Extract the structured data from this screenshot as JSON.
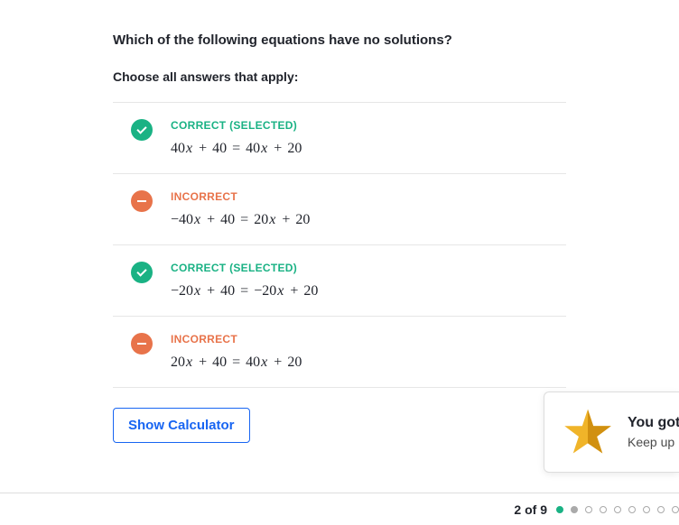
{
  "question": "Which of the following equations have no solutions?",
  "instruction": "Choose all answers that apply:",
  "answers": [
    {
      "status": "correct",
      "label": "CORRECT (SELECTED)",
      "equation": {
        "text": "40<span class='var'>x</span><span class='op'>+</span>40<span class='eq'>=</span>40<span class='var'>x</span><span class='op'>+</span>20"
      }
    },
    {
      "status": "incorrect",
      "label": "INCORRECT",
      "equation": {
        "text": "−40<span class='var'>x</span><span class='op'>+</span>40<span class='eq'>=</span>20<span class='var'>x</span><span class='op'>+</span>20"
      }
    },
    {
      "status": "correct",
      "label": "CORRECT (SELECTED)",
      "equation": {
        "text": "−20<span class='var'>x</span><span class='op'>+</span>40<span class='eq'>=</span>−20<span class='var'>x</span><span class='op'>+</span>20"
      }
    },
    {
      "status": "incorrect",
      "label": "INCORRECT",
      "equation": {
        "text": "20<span class='var'>x</span><span class='op'>+</span>40<span class='eq'>=</span>40<span class='var'>x</span><span class='op'>+</span>20"
      }
    }
  ],
  "calculator_label": "Show Calculator",
  "toast": {
    "title": "You got",
    "subtitle": "Keep up"
  },
  "progress": {
    "text": "2 of 9",
    "total": 9,
    "dots": [
      "filled-green",
      "filled-gray",
      "empty",
      "empty",
      "empty",
      "empty",
      "empty",
      "empty",
      "empty"
    ]
  },
  "colors": {
    "correct": "#1ab284",
    "incorrect": "#e8734a",
    "link": "#1865f2",
    "star": "#f0b429",
    "star_dark": "#d19010"
  }
}
